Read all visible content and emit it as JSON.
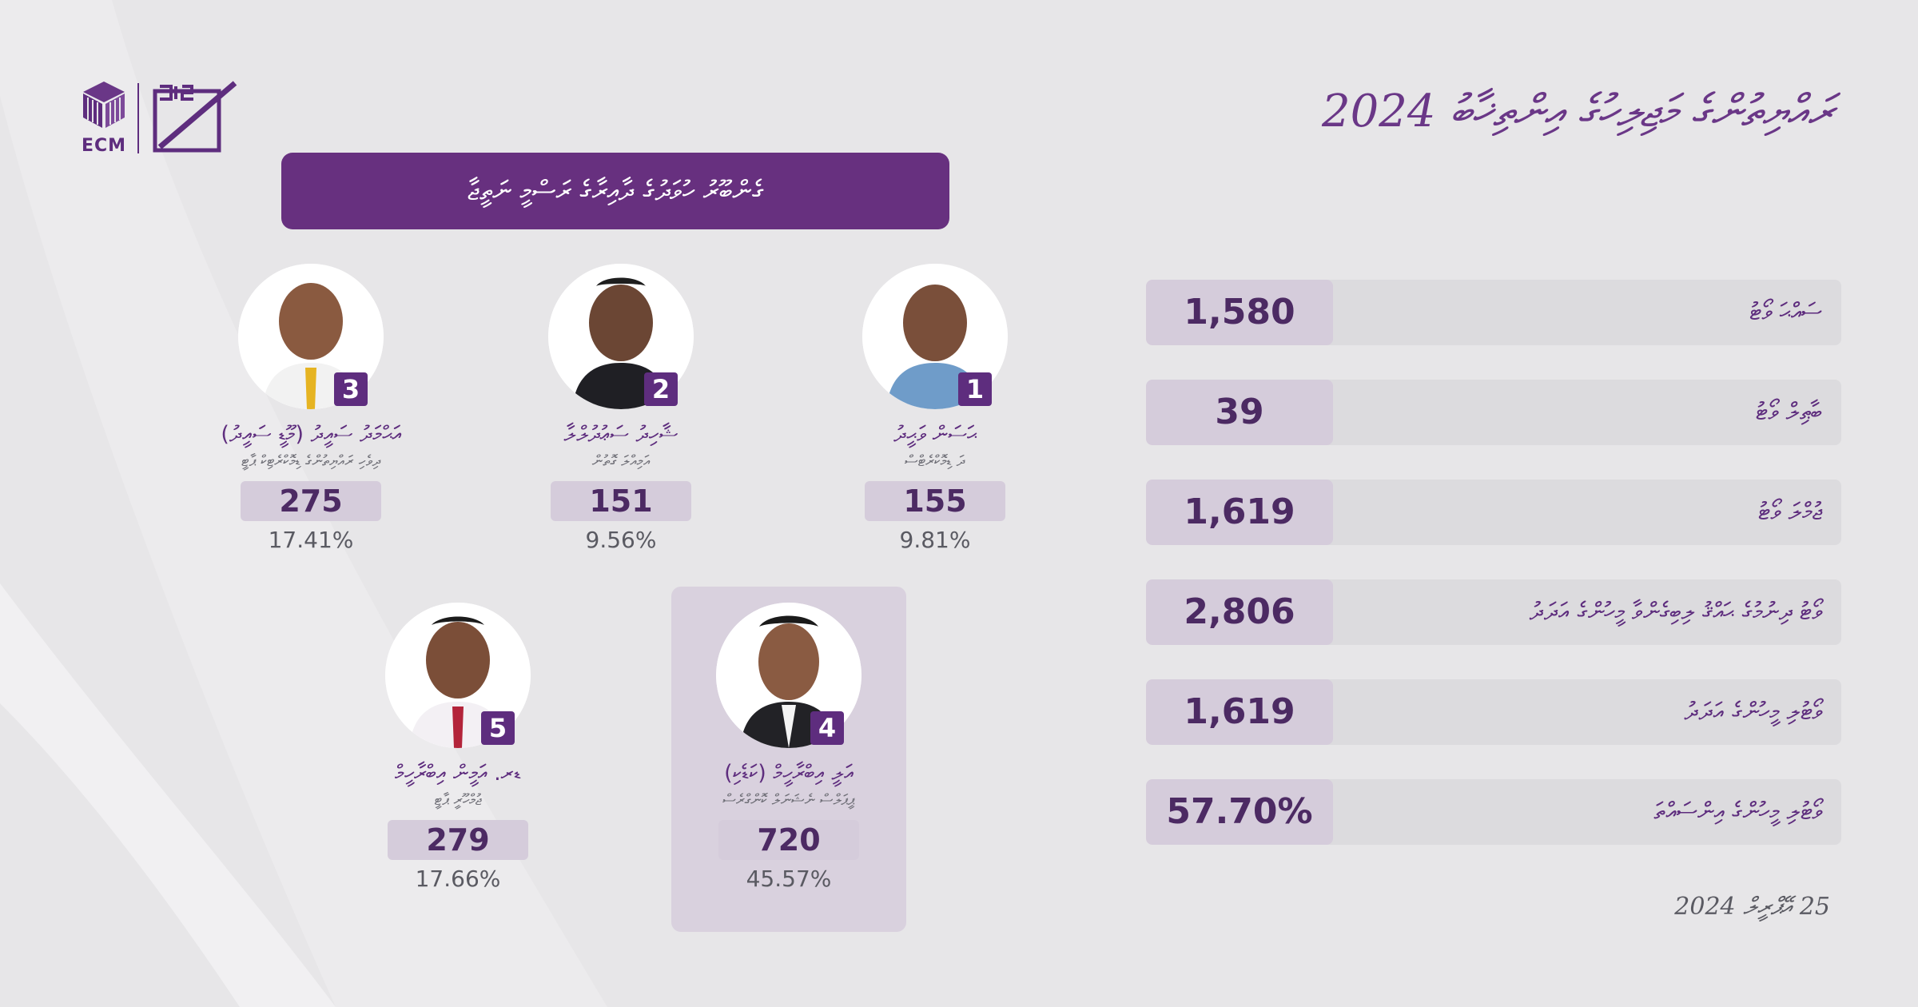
{
  "header": {
    "title": "ރައްޔިތުންގެ މަޖިލިހުގެ އިންތިޚާބު 2024",
    "logo_text": "ECM"
  },
  "banner": {
    "text": "ގެންބޫރު ހުވަދުގެ ދާއިރާގެ ރަސްމީ ނަތީޖާ"
  },
  "candidates": [
    {
      "number": "1",
      "name": "ޙަސަން ވަޙީދު",
      "party": "ދަ ޑިމޮކްރެޓްސް",
      "votes": "155",
      "percent": "9.81%",
      "highlight": false
    },
    {
      "number": "2",
      "name": "ޝާހިދު ސަޢުދުލްލާ",
      "party": "އަމިއްލަ ގޮތުން",
      "votes": "151",
      "percent": "9.56%",
      "highlight": false
    },
    {
      "number": "3",
      "name": "އަޙްމަދު ސައީދު (މޫޑީ ސައީދު)",
      "party": "ދިވެހި ރައްޔިތުންގެ ޑިމޮކްރެޓިކް ޕާޓީ",
      "votes": "275",
      "percent": "17.41%",
      "highlight": false
    },
    {
      "number": "4",
      "name": "އަލީ އިބްރާހީމް (ކަޑެކި)",
      "party": "ޕީޕަލްސް ނެޝަނަލް ކޮންގްރެސް",
      "votes": "720",
      "percent": "45.57%",
      "highlight": true
    },
    {
      "number": "5",
      "name": "ޑރ. އަމީން އިބްރާހީމް",
      "party": "ޖުމްހޫރީ ޕާޓީ",
      "votes": "279",
      "percent": "17.66%",
      "highlight": false
    }
  ],
  "stats": [
    {
      "label": "ސައްޙަ ވޯޓު",
      "value": "1,580"
    },
    {
      "label": "ބާޠިލް ވޯޓު",
      "value": "39"
    },
    {
      "label": "ޖުމްލަ ވޯޓު",
      "value": "1,619"
    },
    {
      "label": "ވޯޓު ދިނުމުގެ ޙައްޤު ލިބިގެންވާ މީހުންގެ އަދަދު",
      "value": "2,806"
    },
    {
      "label": "ވޯޓުލި މީހުންގެ އަދަދު",
      "value": "1,619"
    },
    {
      "label": "ވޯޓުލި މީހުންގެ އިންސައްތަ",
      "value": "57.70%"
    }
  ],
  "date": "25 އޭޕްރީލް 2024",
  "colors": {
    "primary": "#67307f",
    "value_box": "#d5ccdb",
    "track": "#dcdbde",
    "background": "#e7e6e8"
  }
}
